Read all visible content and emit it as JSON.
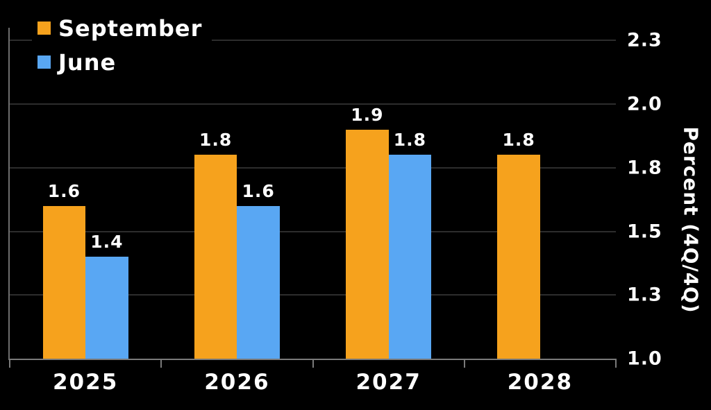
{
  "colors": {
    "background": "#000000",
    "grid": "#2D2D2D",
    "axis": "#7A7A7A",
    "text": "#FFFFFF"
  },
  "chart_data": {
    "type": "bar",
    "title": "",
    "xlabel": "",
    "ylabel": "Percent (4Q/4Q)",
    "categories": [
      "2025",
      "2026",
      "2027",
      "2028"
    ],
    "series": [
      {
        "name": "September",
        "color": "#F6A21D",
        "values": [
          1.6,
          1.8,
          1.9,
          1.8
        ]
      },
      {
        "name": "June",
        "color": "#59A7F3",
        "values": [
          1.4,
          1.6,
          1.8,
          null
        ]
      }
    ],
    "value_labels": [
      "1.6",
      "1.4",
      "1.8",
      "1.6",
      "1.9",
      "1.8",
      "1.8"
    ],
    "ylim": [
      1.0,
      2.3
    ],
    "yticks": [
      {
        "value": 1.0,
        "label": "1.0"
      },
      {
        "value": 1.25,
        "label": "1.3"
      },
      {
        "value": 1.5,
        "label": "1.5"
      },
      {
        "value": 1.75,
        "label": "1.8"
      },
      {
        "value": 2.0,
        "label": "2.0"
      },
      {
        "value": 2.25,
        "label": "2.3"
      }
    ],
    "grid": "horizontal",
    "legend_position": "top-left",
    "axis_side": "right"
  }
}
